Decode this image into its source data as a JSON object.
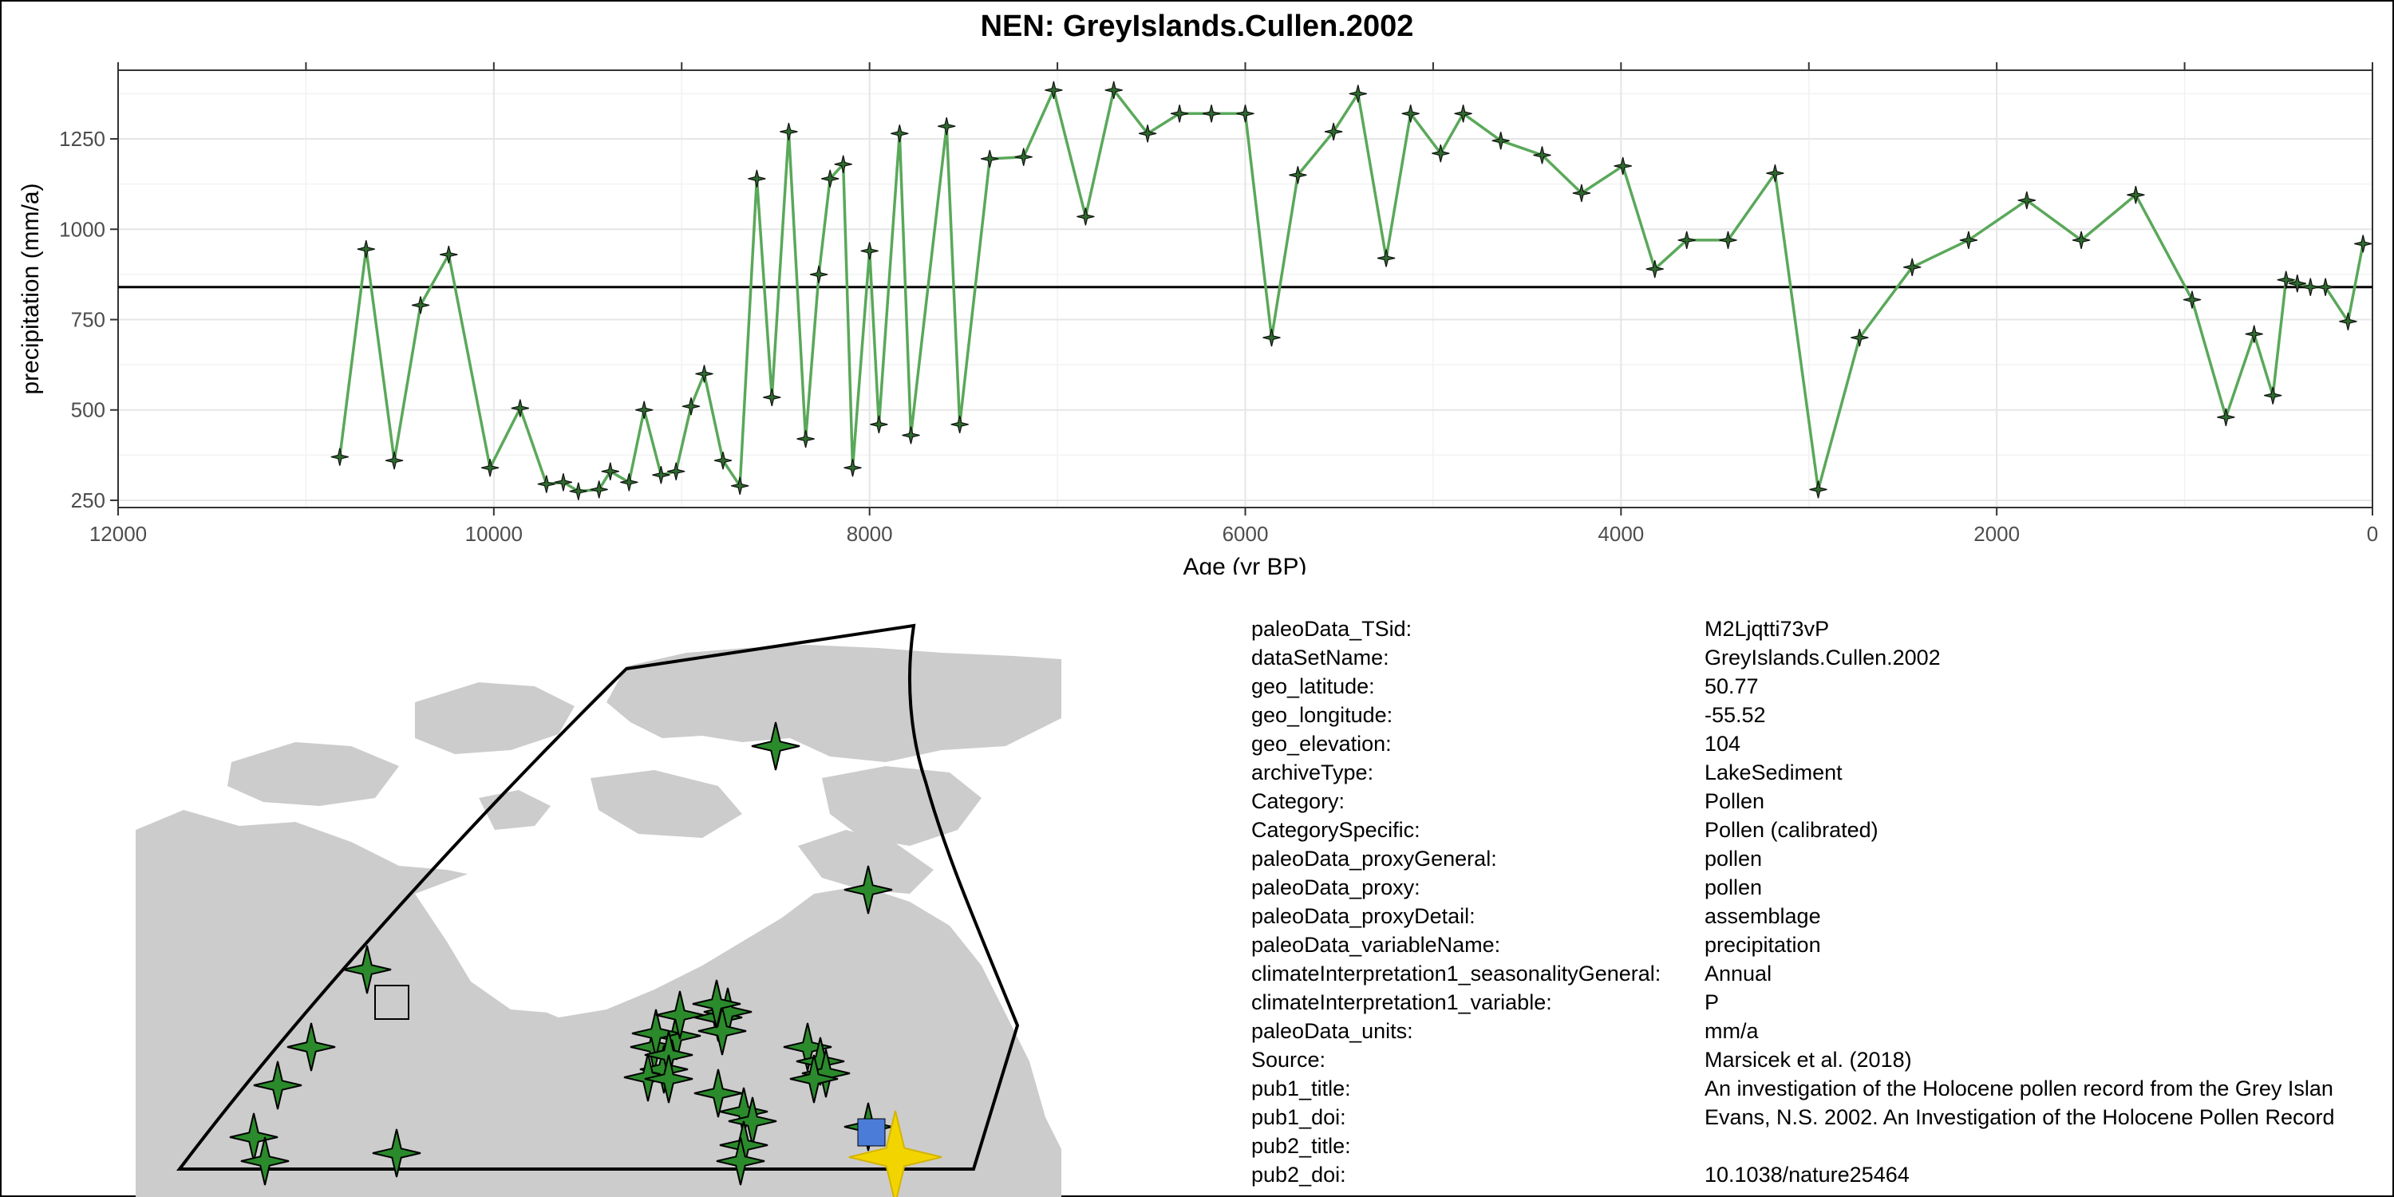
{
  "chart_data": {
    "type": "line",
    "title": "NEN: GreyIslands.Cullen.2002",
    "xlabel": "Age (yr BP)",
    "ylabel": "precipitation (mm/a)",
    "xlim": [
      12000,
      0
    ],
    "ylim": [
      230,
      1440
    ],
    "x_reversed": true,
    "x_ticks": [
      12000,
      10000,
      8000,
      6000,
      4000,
      2000,
      0
    ],
    "y_ticks": [
      250,
      500,
      750,
      1000,
      1250
    ],
    "grid": true,
    "reference_line": 840,
    "line_color": "#5aa85a",
    "marker": "star",
    "series": [
      {
        "x": [
          10820,
          10680,
          10530,
          10390,
          10240,
          10020,
          9860,
          9720,
          9630,
          9550,
          9440,
          9380,
          9280,
          9200,
          9110,
          9030,
          8950,
          8880,
          8780,
          8690,
          8600,
          8520,
          8430,
          8340,
          8270,
          8210,
          8140,
          8090,
          8000,
          7950,
          7840,
          7780,
          7590,
          7520,
          7360,
          7180,
          7020,
          6850,
          6700,
          6520,
          6350,
          6180,
          6000,
          5860,
          5720,
          5530,
          5400,
          5250,
          5120,
          4960,
          4840,
          4640,
          4420,
          4210,
          3990,
          3820,
          3650,
          3430,
          3180,
          2950,
          2730,
          2450,
          2150,
          1840,
          1550,
          1260,
          960,
          780,
          630,
          530,
          460,
          400,
          330,
          250,
          130,
          50
        ],
        "y": [
          370,
          945,
          360,
          790,
          930,
          340,
          505,
          295,
          300,
          275,
          280,
          330,
          300,
          500,
          320,
          330,
          510,
          600,
          360,
          290,
          1140,
          535,
          1270,
          420,
          875,
          1140,
          1180,
          340,
          940,
          460,
          1265,
          430,
          1285,
          460,
          1195,
          1200,
          1385,
          1035,
          1385,
          1265,
          1320,
          1320,
          1320,
          700,
          1150,
          1270,
          1375,
          920,
          1320,
          1210,
          1320,
          1245,
          1205,
          1100,
          1175,
          890,
          970,
          970,
          1155,
          280,
          700,
          895,
          970,
          1080,
          970,
          1095,
          805,
          480,
          710,
          540,
          860,
          850,
          840,
          840,
          745,
          960
        ]
      }
    ]
  },
  "map": {
    "land_color": "#cccccc",
    "water_color": "#ffffff",
    "site_marker_color": "#2b8a2b",
    "selected_site_color": "#f2d500",
    "selected_site_square_color": "#4a7cd8",
    "bounding_region_color": "#000000",
    "site_markers": 30,
    "reference_square_color": "#cccccc"
  },
  "metadata": [
    {
      "key": "paleoData_TSid:",
      "value": "M2Ljqtti73vP"
    },
    {
      "key": "dataSetName:",
      "value": "GreyIslands.Cullen.2002"
    },
    {
      "key": "geo_latitude:",
      "value": "50.77"
    },
    {
      "key": "geo_longitude:",
      "value": "-55.52"
    },
    {
      "key": "geo_elevation:",
      "value": "104"
    },
    {
      "key": "archiveType:",
      "value": "LakeSediment"
    },
    {
      "key": "Category:",
      "value": "Pollen"
    },
    {
      "key": "CategorySpecific:",
      "value": "Pollen (calibrated)"
    },
    {
      "key": "paleoData_proxyGeneral:",
      "value": "pollen"
    },
    {
      "key": "paleoData_proxy:",
      "value": "pollen"
    },
    {
      "key": "paleoData_proxyDetail:",
      "value": "assemblage"
    },
    {
      "key": "paleoData_variableName:",
      "value": "precipitation"
    },
    {
      "key": "climateInterpretation1_seasonalityGeneral:",
      "value": "Annual"
    },
    {
      "key": "climateInterpretation1_variable:",
      "value": "P"
    },
    {
      "key": "paleoData_units:",
      "value": "mm/a"
    },
    {
      "key": "Source:",
      "value": "Marsicek et al. (2018)"
    },
    {
      "key": "pub1_title:",
      "value": "An investigation of the Holocene pollen record from the Grey Islan"
    },
    {
      "key": "pub1_doi:",
      "value": "Evans, N.S. 2002. An Investigation of the Holocene Pollen Record"
    },
    {
      "key": "pub2_title:",
      "value": ""
    },
    {
      "key": "pub2_doi:",
      "value": "10.1038/nature25464"
    }
  ]
}
